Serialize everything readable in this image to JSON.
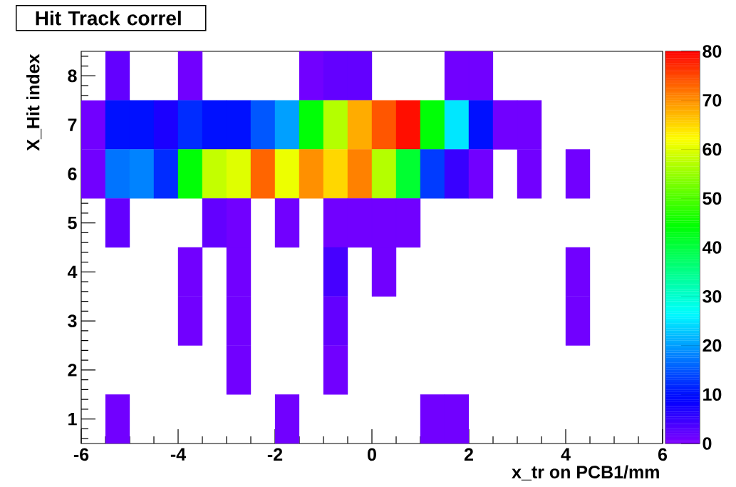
{
  "chart_data": {
    "type": "heatmap",
    "title": "Hit Track correl",
    "xlabel": "x_tr on PCB1/mm",
    "ylabel": "X_Hit index",
    "x": [
      -5.75,
      -5.25,
      -4.75,
      -4.25,
      -3.75,
      -3.25,
      -2.75,
      -2.25,
      -1.75,
      -1.25,
      -0.75,
      -0.25,
      0.25,
      0.75,
      1.25,
      1.75,
      2.25,
      2.75,
      3.25,
      3.75,
      4.25,
      4.75,
      5.25,
      5.75
    ],
    "y_categories": [
      "8",
      "7",
      "6",
      "5",
      "4",
      "3",
      "2",
      "1"
    ],
    "cells": [
      [
        null,
        2,
        null,
        null,
        1,
        null,
        null,
        null,
        null,
        1,
        2,
        2,
        null,
        null,
        null,
        1,
        1,
        null,
        null,
        null,
        null,
        null,
        null,
        null
      ],
      [
        1,
        10,
        10,
        7,
        12,
        10,
        10,
        15,
        20,
        44,
        57,
        68,
        74,
        79,
        44,
        25,
        10,
        1,
        1,
        null,
        null,
        null,
        null,
        null
      ],
      [
        1,
        17,
        18,
        12,
        44,
        58,
        60,
        73,
        61,
        70,
        65,
        71,
        57,
        41,
        13,
        5,
        1,
        null,
        1,
        null,
        1,
        null,
        null,
        null
      ],
      [
        null,
        2,
        null,
        null,
        null,
        2,
        1,
        null,
        1,
        null,
        1,
        1,
        1,
        1,
        null,
        null,
        null,
        null,
        null,
        null,
        null,
        null,
        null,
        null
      ],
      [
        null,
        null,
        null,
        null,
        1,
        null,
        1,
        null,
        null,
        null,
        4,
        null,
        1,
        null,
        null,
        null,
        null,
        null,
        null,
        null,
        1,
        null,
        null,
        null
      ],
      [
        null,
        null,
        null,
        null,
        1,
        null,
        1,
        null,
        null,
        null,
        2,
        null,
        null,
        null,
        null,
        null,
        null,
        null,
        null,
        null,
        1,
        null,
        null,
        null
      ],
      [
        null,
        null,
        null,
        null,
        null,
        null,
        1,
        null,
        null,
        null,
        1,
        null,
        null,
        null,
        null,
        null,
        null,
        null,
        null,
        null,
        null,
        null,
        null,
        null
      ],
      [
        null,
        1,
        null,
        null,
        null,
        null,
        null,
        null,
        1,
        null,
        null,
        null,
        null,
        null,
        1,
        1,
        null,
        null,
        null,
        null,
        null,
        null,
        null,
        null
      ]
    ],
    "xlim": [
      -6,
      6
    ],
    "xticks": [
      -6,
      -4,
      -2,
      0,
      2,
      4,
      6
    ],
    "clim": [
      0,
      80
    ],
    "cticks": [
      0,
      10,
      20,
      30,
      40,
      50,
      60,
      70,
      80
    ]
  }
}
